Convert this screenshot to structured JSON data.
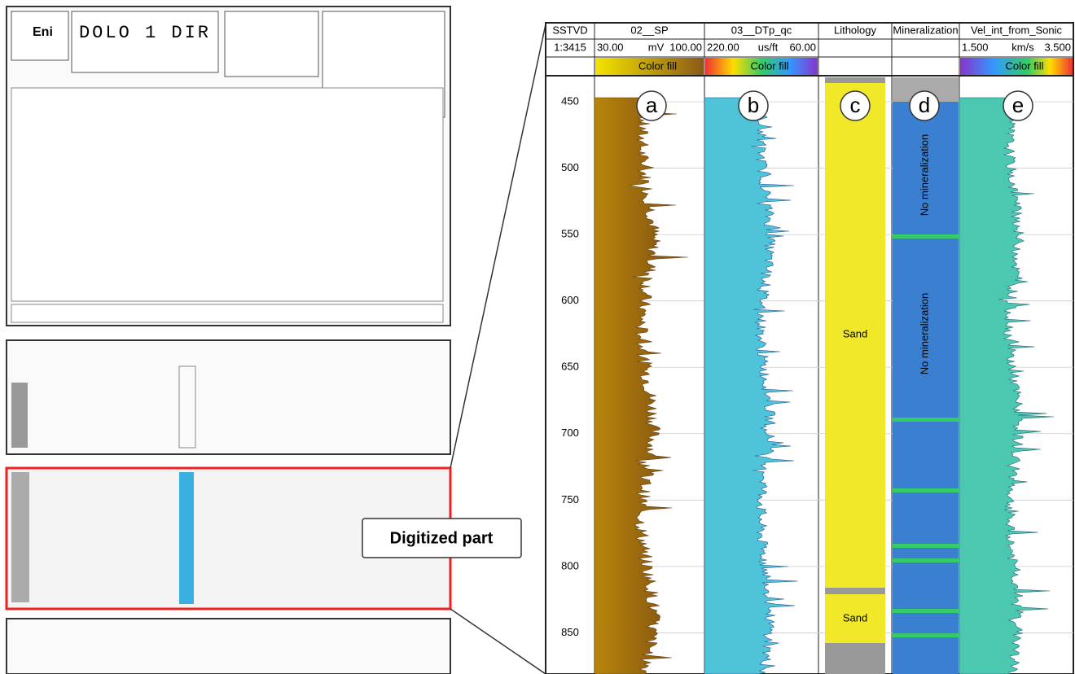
{
  "scan": {
    "well_name": "DOLO 1 DIR",
    "company": "Eni"
  },
  "callout": "Digitized part",
  "log": {
    "depth_track": {
      "name": "SSTVD",
      "scale": "1:3415"
    },
    "depth_lim": [
      431.6,
      881
    ],
    "depth_ticks": [
      450,
      500,
      550,
      600,
      650,
      700,
      750,
      800,
      850
    ],
    "tracks": [
      {
        "name": "02__SP",
        "left": "30.00",
        "unit": "mV",
        "right": "100.00",
        "fill": "Color fill",
        "letter": "a"
      },
      {
        "name": "03__DTp_qc",
        "left": "220.00",
        "unit": "us/ft",
        "right": "60.00",
        "fill": "Color fill",
        "letter": "b"
      },
      {
        "name": "Lithology",
        "letter": "c",
        "zones": [
          "Sand",
          "Sand"
        ]
      },
      {
        "name": "Mineralization",
        "letter": "d",
        "zones": [
          "No mineralization",
          "No mineralization"
        ]
      },
      {
        "name": "Vel_int_from_Sonic",
        "left": "1.500",
        "unit": "km/s",
        "right": "3.500",
        "fill": "Color fill",
        "letter": "e"
      }
    ]
  }
}
